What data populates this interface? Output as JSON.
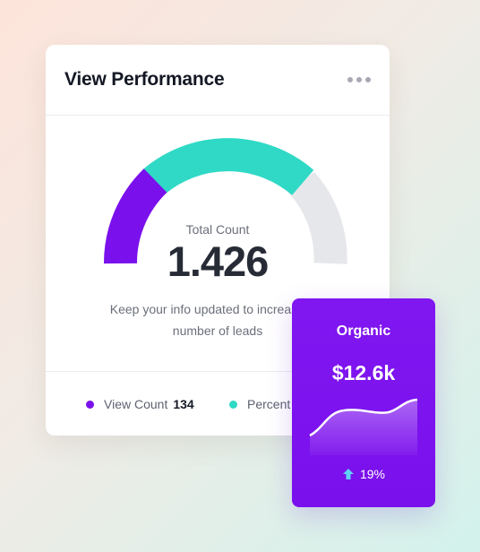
{
  "card": {
    "title": "View Performance",
    "more_icon": "more-horizontal-icon",
    "total_label": "Total Count",
    "total_value": "1.426",
    "description": "Keep your info updated to increase the number of leads",
    "gauge": {
      "purple_fraction": 0.25,
      "teal_fraction": 0.5,
      "gray_fraction": 0.25
    }
  },
  "legend": [
    {
      "label": "View Count",
      "value": "134",
      "color": "#7a10ec"
    },
    {
      "label": "Percent",
      "value": "",
      "color": "#2fd9c5"
    }
  ],
  "organic": {
    "label": "Organic",
    "value": "$12.6k",
    "trend": "19%",
    "trend_icon": "arrow-up-icon"
  },
  "colors": {
    "purple": "#7a10ec",
    "teal": "#2fd9c5",
    "gray": "#e6e7ea"
  }
}
